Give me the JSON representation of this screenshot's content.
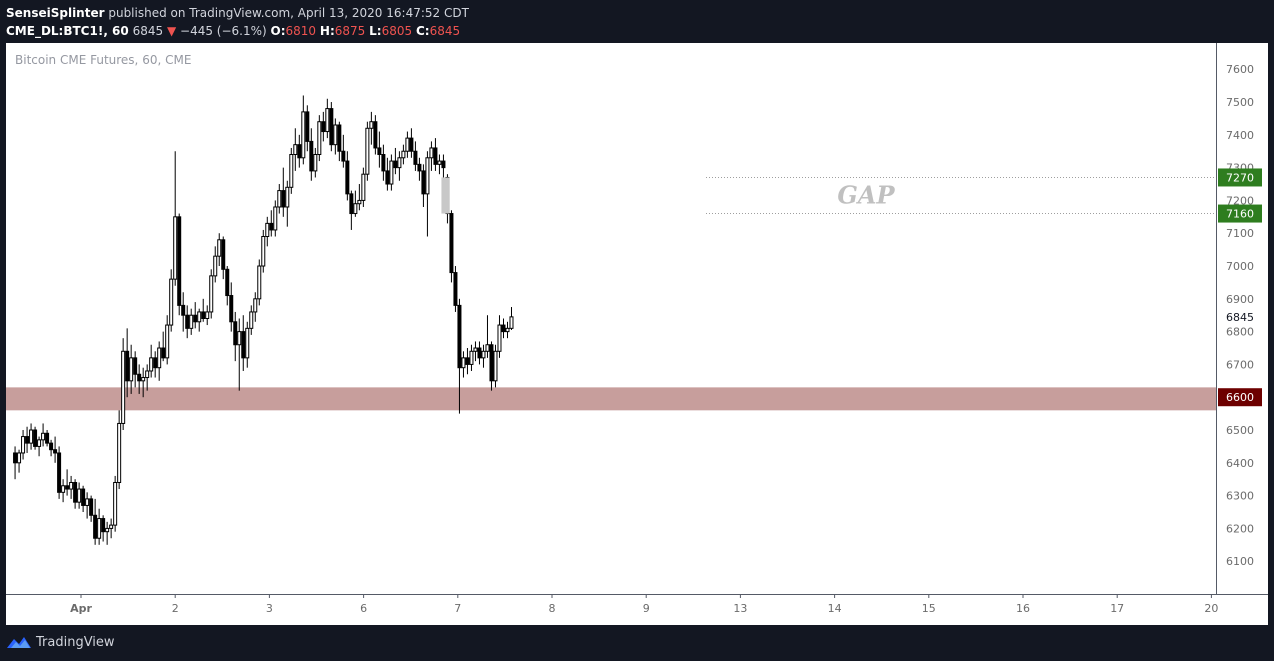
{
  "header": {
    "publisher": "SenseiSplinter",
    "published_text": "published on TradingView.com, April 13, 2020 16:47:52 CDT",
    "symbol": "CME_DL:BTC1!, 60",
    "last": "6845",
    "change": "−445 (−6.1%)",
    "o_label": "O:",
    "o_val": "6810",
    "h_label": "H:",
    "h_val": "6875",
    "l_label": "L:",
    "l_val": "6805",
    "c_label": "C:",
    "c_val": "6845"
  },
  "footer": {
    "brand": "TradingView"
  },
  "colors": {
    "candle": "#000000",
    "gap_fill": "#c8c8c8",
    "support_band": "#c79e9c",
    "label_green": "#2e7d1f",
    "label_dark_red": "#6d0000",
    "gap_text": "#c0c0c0"
  },
  "chart_data": {
    "type": "candlestick",
    "title": "Bitcoin CME Futures, 60, CME",
    "ylim": [
      6000,
      7680
    ],
    "y_ticks": [
      6100,
      6200,
      6300,
      6400,
      6500,
      6600,
      6700,
      6800,
      6900,
      7000,
      7100,
      7200,
      7300,
      7400,
      7500,
      7600
    ],
    "x_ticks": [
      {
        "label": "Apr",
        "pos": 0
      },
      {
        "label": "2",
        "pos": 1
      },
      {
        "label": "3",
        "pos": 2
      },
      {
        "label": "6",
        "pos": 3
      },
      {
        "label": "7",
        "pos": 4
      },
      {
        "label": "8",
        "pos": 5
      },
      {
        "label": "9",
        "pos": 6
      },
      {
        "label": "13",
        "pos": 7
      },
      {
        "label": "14",
        "pos": 8
      },
      {
        "label": "15",
        "pos": 9
      },
      {
        "label": "16",
        "pos": 10
      },
      {
        "label": "17",
        "pos": 11
      },
      {
        "label": "20",
        "pos": 12
      }
    ],
    "current_price": "6845",
    "price_labels": [
      {
        "text": "7270",
        "value": 7270,
        "style": "green"
      },
      {
        "text": "7160",
        "value": 7160,
        "style": "green"
      },
      {
        "text": "6600",
        "value": 6600,
        "style": "dark-red"
      }
    ],
    "gap": {
      "label": "GAP",
      "top": 7270,
      "bottom": 7160
    },
    "support_band": {
      "top": 6630,
      "bottom": 6560
    },
    "x_start": -0.7,
    "x_step": 0.0425,
    "candles": [
      [
        6430,
        6450,
        6350,
        6400
      ],
      [
        6400,
        6440,
        6370,
        6430
      ],
      [
        6430,
        6500,
        6410,
        6480
      ],
      [
        6480,
        6510,
        6430,
        6460
      ],
      [
        6460,
        6520,
        6440,
        6500
      ],
      [
        6500,
        6510,
        6440,
        6450
      ],
      [
        6450,
        6480,
        6420,
        6470
      ],
      [
        6470,
        6520,
        6450,
        6490
      ],
      [
        6490,
        6500,
        6450,
        6460
      ],
      [
        6460,
        6470,
        6420,
        6440
      ],
      [
        6440,
        6480,
        6400,
        6430
      ],
      [
        6430,
        6450,
        6290,
        6310
      ],
      [
        6310,
        6350,
        6280,
        6330
      ],
      [
        6330,
        6380,
        6300,
        6320
      ],
      [
        6320,
        6360,
        6290,
        6340
      ],
      [
        6340,
        6350,
        6260,
        6280
      ],
      [
        6280,
        6340,
        6260,
        6320
      ],
      [
        6320,
        6330,
        6250,
        6270
      ],
      [
        6270,
        6310,
        6230,
        6290
      ],
      [
        6290,
        6300,
        6220,
        6240
      ],
      [
        6240,
        6290,
        6150,
        6170
      ],
      [
        6170,
        6260,
        6150,
        6230
      ],
      [
        6230,
        6240,
        6160,
        6190
      ],
      [
        6190,
        6220,
        6150,
        6200
      ],
      [
        6200,
        6230,
        6170,
        6210
      ],
      [
        6210,
        6360,
        6190,
        6340
      ],
      [
        6340,
        6560,
        6320,
        6520
      ],
      [
        6520,
        6780,
        6500,
        6740
      ],
      [
        6740,
        6810,
        6600,
        6650
      ],
      [
        6650,
        6760,
        6610,
        6720
      ],
      [
        6720,
        6740,
        6630,
        6670
      ],
      [
        6670,
        6700,
        6610,
        6650
      ],
      [
        6650,
        6690,
        6600,
        6660
      ],
      [
        6660,
        6700,
        6620,
        6680
      ],
      [
        6680,
        6760,
        6660,
        6720
      ],
      [
        6720,
        6740,
        6660,
        6690
      ],
      [
        6690,
        6770,
        6650,
        6750
      ],
      [
        6750,
        6800,
        6710,
        6720
      ],
      [
        6720,
        6850,
        6700,
        6820
      ],
      [
        6820,
        6990,
        6800,
        6960
      ],
      [
        6960,
        7350,
        6940,
        7150
      ],
      [
        7150,
        7160,
        6850,
        6880
      ],
      [
        6880,
        6920,
        6800,
        6850
      ],
      [
        6850,
        6880,
        6780,
        6810
      ],
      [
        6810,
        6870,
        6790,
        6850
      ],
      [
        6850,
        6890,
        6810,
        6830
      ],
      [
        6830,
        6870,
        6800,
        6860
      ],
      [
        6860,
        6900,
        6830,
        6840
      ],
      [
        6840,
        6880,
        6820,
        6860
      ],
      [
        6860,
        6990,
        6840,
        6970
      ],
      [
        6970,
        7060,
        6950,
        7030
      ],
      [
        7030,
        7100,
        7000,
        7080
      ],
      [
        7080,
        7090,
        6960,
        6990
      ],
      [
        6990,
        7000,
        6880,
        6910
      ],
      [
        6910,
        6950,
        6800,
        6830
      ],
      [
        6830,
        6860,
        6710,
        6760
      ],
      [
        6760,
        6840,
        6620,
        6800
      ],
      [
        6800,
        6850,
        6680,
        6720
      ],
      [
        6720,
        6830,
        6690,
        6810
      ],
      [
        6810,
        6880,
        6790,
        6860
      ],
      [
        6860,
        6920,
        6830,
        6900
      ],
      [
        6900,
        7020,
        6880,
        7000
      ],
      [
        7000,
        7110,
        6980,
        7090
      ],
      [
        7090,
        7150,
        7060,
        7130
      ],
      [
        7130,
        7170,
        7090,
        7110
      ],
      [
        7110,
        7200,
        7090,
        7180
      ],
      [
        7180,
        7250,
        7160,
        7230
      ],
      [
        7230,
        7300,
        7150,
        7180
      ],
      [
        7180,
        7260,
        7120,
        7240
      ],
      [
        7240,
        7360,
        7220,
        7340
      ],
      [
        7340,
        7420,
        7290,
        7370
      ],
      [
        7370,
        7400,
        7300,
        7330
      ],
      [
        7330,
        7520,
        7310,
        7470
      ],
      [
        7470,
        7490,
        7350,
        7380
      ],
      [
        7380,
        7420,
        7260,
        7290
      ],
      [
        7290,
        7360,
        7270,
        7340
      ],
      [
        7340,
        7460,
        7320,
        7440
      ],
      [
        7440,
        7470,
        7380,
        7410
      ],
      [
        7410,
        7510,
        7390,
        7480
      ],
      [
        7480,
        7500,
        7350,
        7370
      ],
      [
        7370,
        7450,
        7340,
        7430
      ],
      [
        7430,
        7440,
        7320,
        7350
      ],
      [
        7350,
        7400,
        7300,
        7320
      ],
      [
        7320,
        7350,
        7200,
        7220
      ],
      [
        7220,
        7230,
        7110,
        7160
      ],
      [
        7160,
        7230,
        7150,
        7190
      ],
      [
        7190,
        7250,
        7170,
        7200
      ],
      [
        7200,
        7300,
        7180,
        7280
      ],
      [
        7280,
        7440,
        7260,
        7420
      ],
      [
        7420,
        7470,
        7370,
        7440
      ],
      [
        7440,
        7460,
        7340,
        7360
      ],
      [
        7360,
        7410,
        7300,
        7340
      ],
      [
        7340,
        7370,
        7260,
        7290
      ],
      [
        7290,
        7330,
        7230,
        7250
      ],
      [
        7250,
        7340,
        7230,
        7320
      ],
      [
        7320,
        7360,
        7280,
        7300
      ],
      [
        7300,
        7350,
        7260,
        7330
      ],
      [
        7330,
        7370,
        7310,
        7350
      ],
      [
        7350,
        7410,
        7330,
        7390
      ],
      [
        7390,
        7420,
        7330,
        7350
      ],
      [
        7350,
        7380,
        7290,
        7310
      ],
      [
        7310,
        7330,
        7260,
        7290
      ],
      [
        7290,
        7310,
        7180,
        7220
      ],
      [
        7220,
        7350,
        7090,
        7330
      ],
      [
        7330,
        7380,
        7290,
        7360
      ],
      [
        7360,
        7390,
        7290,
        7310
      ],
      [
        7310,
        7340,
        7280,
        7320
      ],
      [
        7320,
        7340,
        7270,
        7300
      ],
      [
        7270,
        7280,
        7130,
        7160
      ],
      [
        7160,
        7170,
        6950,
        6980
      ],
      [
        6980,
        7000,
        6860,
        6880
      ],
      [
        6880,
        6900,
        6550,
        6690
      ],
      [
        6690,
        6740,
        6660,
        6720
      ],
      [
        6720,
        6750,
        6670,
        6700
      ],
      [
        6700,
        6760,
        6680,
        6740
      ],
      [
        6740,
        6770,
        6710,
        6750
      ],
      [
        6750,
        6770,
        6700,
        6720
      ],
      [
        6720,
        6760,
        6690,
        6740
      ],
      [
        6740,
        6850,
        6720,
        6760
      ],
      [
        6760,
        6770,
        6620,
        6650
      ],
      [
        6650,
        6760,
        6630,
        6740
      ],
      [
        6740,
        6850,
        6720,
        6820
      ],
      [
        6820,
        6840,
        6780,
        6800
      ],
      [
        6800,
        6830,
        6780,
        6810
      ],
      [
        6810,
        6875,
        6805,
        6845
      ]
    ]
  }
}
